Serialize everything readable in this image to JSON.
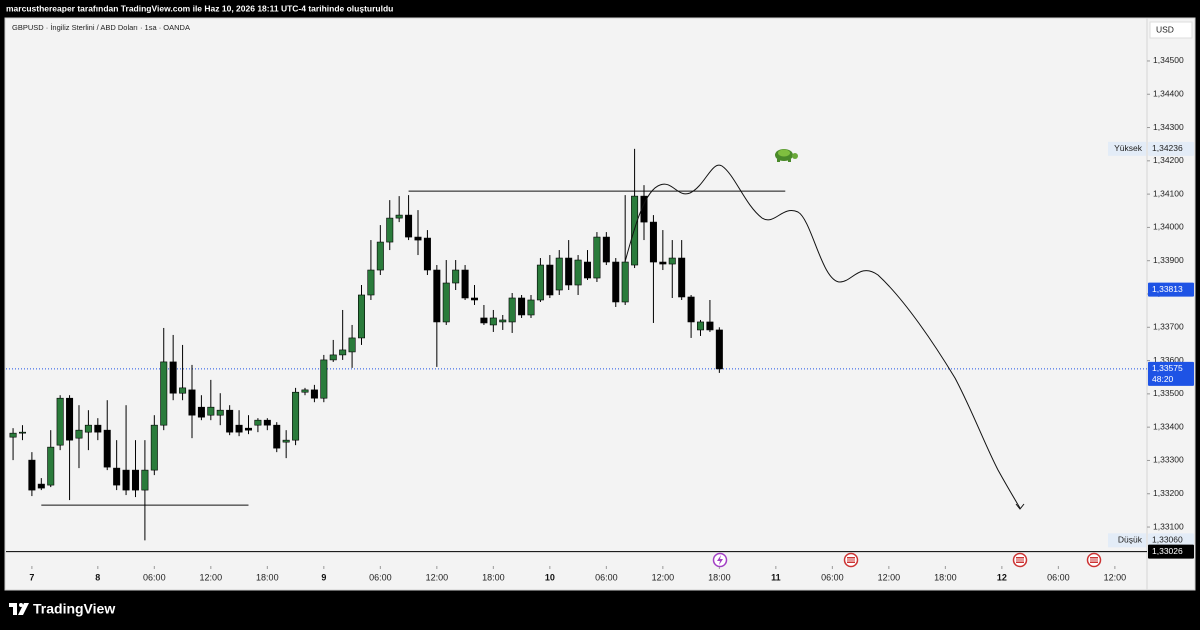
{
  "banner": "marcusthereaper tarafından TradingView.com ile Haz 10, 2026 18:11 UTC-4 tarihinde oluşturuldu",
  "chart_data": {
    "type": "candlestick",
    "title": "GBPUSD · İngiliz Sterlini / ABD Doları · 1sa · OANDA",
    "currency": "USD",
    "up_color": "#2a7b3b",
    "down_color": "#000000",
    "x": [
      0,
      1,
      2,
      3,
      4,
      5,
      6,
      7,
      8,
      9,
      10,
      11,
      12,
      13,
      14,
      15,
      16,
      17,
      18,
      19,
      20,
      21,
      22,
      23,
      24,
      25,
      26,
      27,
      28,
      29,
      30,
      31,
      32,
      33,
      34,
      35,
      36,
      37,
      38,
      39,
      40,
      41,
      42,
      43,
      44,
      45,
      46,
      47,
      48,
      49,
      50,
      51,
      52,
      53,
      54,
      55,
      56,
      57,
      58,
      59,
      60,
      61,
      62,
      63,
      64,
      65,
      66,
      67,
      68,
      69,
      70,
      71,
      72,
      73,
      74,
      75
    ],
    "open": [
      1.3337,
      1.33382,
      1.33301,
      1.33229,
      1.33226,
      1.33346,
      1.33487,
      1.33367,
      1.33385,
      1.33406,
      1.33391,
      1.33277,
      1.33271,
      1.33271,
      1.33211,
      1.33271,
      1.33406,
      1.33596,
      1.33502,
      1.33512,
      1.3346,
      1.33436,
      1.33436,
      1.33451,
      1.33406,
      1.33397,
      1.33406,
      1.33421,
      1.33406,
      1.33355,
      1.33361,
      1.33505,
      1.33512,
      1.33487,
      1.33602,
      1.33617,
      1.33626,
      1.33668,
      1.33797,
      1.33872,
      1.33956,
      1.34028,
      1.34037,
      1.33971,
      1.33968,
      1.33872,
      1.33716,
      1.33833,
      1.33872,
      1.33788,
      1.33728,
      1.33707,
      1.33716,
      1.33716,
      1.33788,
      1.33737,
      1.33782,
      1.33887,
      1.33812,
      1.33908,
      1.33827,
      1.33896,
      1.33848,
      1.33971,
      1.33896,
      1.33776,
      1.33887,
      1.34094,
      1.34016,
      1.33896,
      1.3389,
      1.33908,
      1.33791,
      1.33692,
      1.33716,
      1.33692
    ],
    "high": [
      1.33397,
      1.33406,
      1.33325,
      1.33247,
      1.33391,
      1.33496,
      1.33496,
      1.33466,
      1.33451,
      1.33427,
      1.33481,
      1.33361,
      1.33466,
      1.33361,
      1.33361,
      1.33436,
      1.33698,
      1.33677,
      1.33647,
      1.33587,
      1.33496,
      1.33542,
      1.33502,
      1.33466,
      1.33451,
      1.33436,
      1.33427,
      1.33427,
      1.33415,
      1.33391,
      1.33518,
      1.33518,
      1.33527,
      1.33617,
      1.33662,
      1.33752,
      1.33707,
      1.33827,
      1.33962,
      1.34007,
      1.34082,
      1.34094,
      1.34097,
      1.34052,
      1.33992,
      1.33887,
      1.33902,
      1.33902,
      1.33887,
      1.33827,
      1.33767,
      1.33752,
      1.33737,
      1.33803,
      1.33797,
      1.33797,
      1.33908,
      1.33917,
      1.33932,
      1.33962,
      1.33917,
      1.33932,
      1.33986,
      1.33986,
      1.33908,
      1.34097,
      1.34236,
      1.34127,
      1.34037,
      1.33992,
      1.33962,
      1.33962,
      1.33797,
      1.33722,
      1.33782,
      1.337
    ],
    "low": [
      1.33301,
      1.33361,
      1.33193,
      1.33211,
      1.3322,
      1.33331,
      1.33181,
      1.33277,
      1.33331,
      1.33361,
      1.33271,
      1.33211,
      1.33196,
      1.3319,
      1.3306,
      1.33256,
      1.33391,
      1.33481,
      1.33481,
      1.33367,
      1.33421,
      1.33421,
      1.33406,
      1.33376,
      1.33373,
      1.33379,
      1.33385,
      1.33391,
      1.33325,
      1.33307,
      1.33346,
      1.33496,
      1.33475,
      1.33475,
      1.33596,
      1.33602,
      1.33578,
      1.33647,
      1.33782,
      1.33857,
      1.33932,
      1.34016,
      1.33962,
      1.33917,
      1.33857,
      1.33581,
      1.33707,
      1.33812,
      1.33782,
      1.33767,
      1.33707,
      1.33686,
      1.33692,
      1.33683,
      1.33728,
      1.33728,
      1.33776,
      1.33788,
      1.33797,
      1.33812,
      1.33797,
      1.33842,
      1.33836,
      1.33887,
      1.33761,
      1.33767,
      1.33878,
      1.33962,
      1.33713,
      1.33872,
      1.33788,
      1.33782,
      1.33668,
      1.33674,
      1.33686,
      1.33563
    ],
    "close": [
      1.33382,
      1.33385,
      1.33211,
      1.33217,
      1.3334,
      1.33487,
      1.33361,
      1.33391,
      1.33406,
      1.33385,
      1.3328,
      1.33226,
      1.33211,
      1.33211,
      1.33271,
      1.33406,
      1.33596,
      1.33502,
      1.33518,
      1.33436,
      1.3343,
      1.3346,
      1.33451,
      1.33385,
      1.33385,
      1.33391,
      1.33421,
      1.33406,
      1.33337,
      1.33361,
      1.33505,
      1.33512,
      1.33487,
      1.33602,
      1.33617,
      1.33632,
      1.33668,
      1.33797,
      1.33872,
      1.33956,
      1.34028,
      1.34037,
      1.33971,
      1.33962,
      1.33872,
      1.33716,
      1.33833,
      1.33872,
      1.33788,
      1.33782,
      1.33713,
      1.33728,
      1.33722,
      1.33788,
      1.33737,
      1.33782,
      1.33887,
      1.33797,
      1.33908,
      1.33827,
      1.33902,
      1.33848,
      1.33971,
      1.33896,
      1.33776,
      1.33896,
      1.34094,
      1.34016,
      1.33896,
      1.3389,
      1.33908,
      1.33791,
      1.33716,
      1.33716,
      1.33692,
      1.33575
    ],
    "xlim": [
      -0.75,
      120.2
    ],
    "xticks": [
      {
        "value": 2,
        "label": "7"
      },
      {
        "value": 9,
        "label": "8"
      },
      {
        "value": 15,
        "label": "06:00"
      },
      {
        "value": 21,
        "label": "12:00"
      },
      {
        "value": 27,
        "label": "18:00"
      },
      {
        "value": 33,
        "label": "9"
      },
      {
        "value": 39,
        "label": "06:00"
      },
      {
        "value": 45,
        "label": "12:00"
      },
      {
        "value": 51,
        "label": "18:00"
      },
      {
        "value": 57,
        "label": "10"
      },
      {
        "value": 63,
        "label": "06:00"
      },
      {
        "value": 69,
        "label": "12:00"
      },
      {
        "value": 75,
        "label": "18:00"
      },
      {
        "value": 81,
        "label": "11"
      },
      {
        "value": 87,
        "label": "06:00"
      },
      {
        "value": 93,
        "label": "12:00"
      },
      {
        "value": 99,
        "label": "18:00"
      },
      {
        "value": 105,
        "label": "12"
      },
      {
        "value": 111,
        "label": "06:00"
      },
      {
        "value": 117,
        "label": "12:00"
      }
    ],
    "ylim": [
      1.33001,
      1.34623
    ],
    "yticks": [
      {
        "value": 1.345,
        "label": "1,34500"
      },
      {
        "value": 1.344,
        "label": "1,34400"
      },
      {
        "value": 1.343,
        "label": "1,34300"
      },
      {
        "value": 1.342,
        "label": "1,34200"
      },
      {
        "value": 1.341,
        "label": "1,34100"
      },
      {
        "value": 1.34,
        "label": "1,34000"
      },
      {
        "value": 1.339,
        "label": "1,33900"
      },
      {
        "value": 1.338,
        "label": "1,33800"
      },
      {
        "value": 1.337,
        "label": "1,33700"
      },
      {
        "value": 1.336,
        "label": "1,33600"
      },
      {
        "value": 1.335,
        "label": "1,33500"
      },
      {
        "value": 1.334,
        "label": "1,33400"
      },
      {
        "value": 1.333,
        "label": "1,33300"
      },
      {
        "value": 1.332,
        "label": "1,33200"
      },
      {
        "value": 1.331,
        "label": "1,33100"
      }
    ],
    "levels": [
      {
        "value": 1.33166,
        "from": 3,
        "to": 25
      },
      {
        "value": 1.34109,
        "from": 42,
        "to": 82
      }
    ],
    "high_marker": {
      "name": "Yüksek",
      "value": 1.34236,
      "label": "1,34236"
    },
    "low_marker": {
      "name": "Düşük",
      "value": 1.3306,
      "label": "1,33060"
    },
    "alert_marker": {
      "value": 1.33813,
      "label": "1,33813",
      "color": "#1e53e5"
    },
    "last_price": {
      "value": 1.33575,
      "label": "1,33575",
      "countdown": "48:20",
      "color": "#1e53e5"
    },
    "low_line": {
      "value": 1.33026,
      "label": "1,33026",
      "color": "#000000"
    }
  },
  "footer": {
    "brand": "TradingView"
  }
}
